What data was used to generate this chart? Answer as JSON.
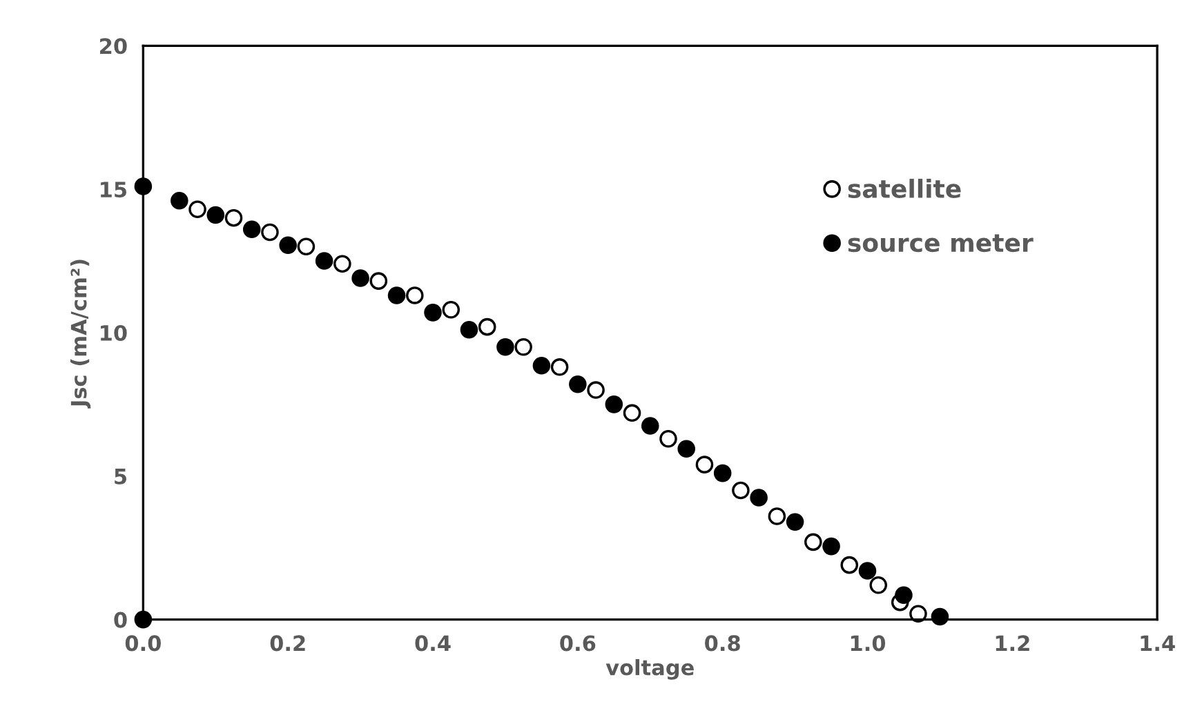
{
  "chart_data": {
    "type": "scatter",
    "xlabel": "voltage",
    "ylabel": "Jsc (mA/cm²)",
    "xlim": [
      0,
      1.4
    ],
    "xticks": [
      {
        "value": 0,
        "label": "0.0"
      },
      {
        "value": 0.2,
        "label": "0.2"
      },
      {
        "value": 0.4,
        "label": "0.4"
      },
      {
        "value": 0.6,
        "label": "0.6"
      },
      {
        "value": 0.8,
        "label": "0.8"
      },
      {
        "value": 1.0,
        "label": "1.0"
      },
      {
        "value": 1.2,
        "label": "1.2"
      },
      {
        "value": 1.4,
        "label": "1.4"
      }
    ],
    "ylim": [
      0,
      20
    ],
    "yticks": [
      0,
      5,
      10,
      15,
      20
    ],
    "grid": false,
    "legend": "right",
    "series": [
      {
        "name": "satellite",
        "color": "#ffffff",
        "marker": "circle",
        "x": [
          0.075,
          0.125,
          0.175,
          0.225,
          0.275,
          0.325,
          0.375,
          0.425,
          0.475,
          0.525,
          0.575,
          0.625,
          0.675,
          0.725,
          0.775,
          0.825,
          0.875,
          0.925,
          0.975,
          1.015,
          1.045,
          1.07
        ],
        "values": [
          14.3,
          14.0,
          13.5,
          13.0,
          12.4,
          11.8,
          11.3,
          10.8,
          10.2,
          9.5,
          8.8,
          8.0,
          7.2,
          6.3,
          5.4,
          4.5,
          3.6,
          2.7,
          1.9,
          1.2,
          0.6,
          0.2
        ]
      },
      {
        "name": "source meter",
        "color": "#000000",
        "marker": "circle",
        "x": [
          0,
          0,
          0.05,
          0.1,
          0.15,
          0.2,
          0.25,
          0.3,
          0.35,
          0.4,
          0.45,
          0.5,
          0.55,
          0.6,
          0.65,
          0.7,
          0.75,
          0.8,
          0.85,
          0.9,
          0.95,
          1.0,
          1.05,
          1.1
        ],
        "values": [
          0,
          15.1,
          14.6,
          14.1,
          13.6,
          13.05,
          12.5,
          11.9,
          11.3,
          10.7,
          10.1,
          9.5,
          8.85,
          8.2,
          7.5,
          6.75,
          5.95,
          5.1,
          4.25,
          3.4,
          2.55,
          1.7,
          0.85,
          0.1
        ]
      }
    ]
  }
}
